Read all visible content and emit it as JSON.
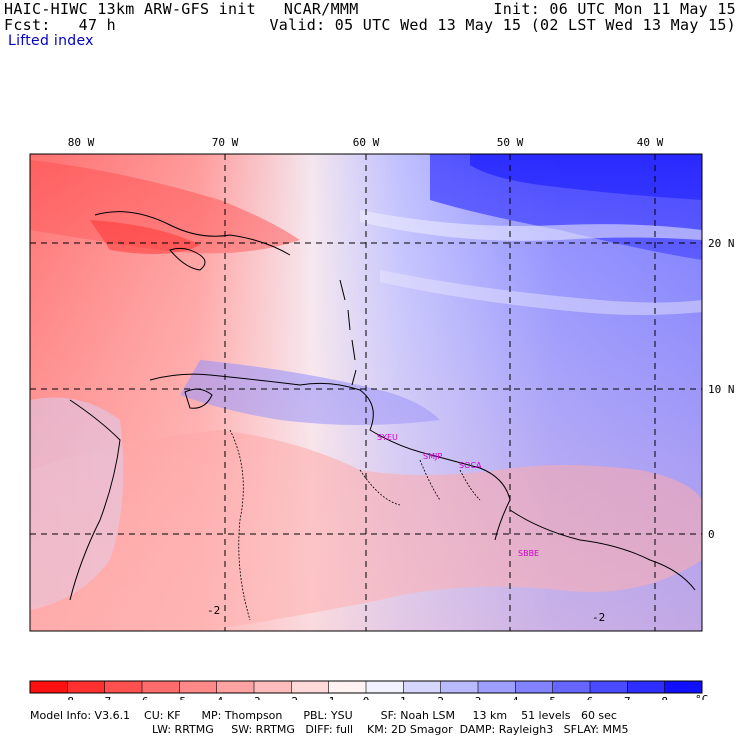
{
  "header": {
    "line1_left": "HAIC-HIWC 13km ARW-GFS init   NCAR/MMM",
    "line2_left": "Fcst:   47 h",
    "line3_left": "Lifted index",
    "line1_right": "Init: 06 UTC Mon 11 May 15",
    "line2_right": "Valid: 05 UTC Wed 13 May 15 (02 LST Wed 13 May 15)"
  },
  "map": {
    "field": "Lifted index",
    "lon_labels": [
      "80 W",
      "70 W",
      "60 W",
      "50 W",
      "40 W"
    ],
    "lat_labels": [
      "20 N",
      "10 N",
      "0"
    ],
    "stations": [
      "SYEU",
      "SMJP",
      "SOCA",
      "SBBE"
    ],
    "contour_labels": [
      "-2",
      "-2"
    ]
  },
  "colorbar": {
    "ticks": [
      "-8",
      "-7",
      "-6",
      "-5",
      "-4",
      "-3",
      "-2",
      "-1",
      "0",
      "1",
      "2",
      "3",
      "4",
      "5",
      "6",
      "7",
      "8"
    ],
    "unit": "°C",
    "colors": [
      "#ff1010",
      "#ff3030",
      "#ff5050",
      "#ff6c6c",
      "#ff8888",
      "#ffa2a2",
      "#ffbcbc",
      "#ffd8d8",
      "#fff2f2",
      "#f2f2ff",
      "#d6d6ff",
      "#babaff",
      "#9e9eff",
      "#8282ff",
      "#6666ff",
      "#4a4aff",
      "#2e2eff",
      "#1010ff"
    ]
  },
  "footer": {
    "line1": "Model Info: V3.6.1    CU: KF      MP: Thompson      PBL: YSU        SF: Noah LSM     13 km    51 levels   60 sec",
    "line2": "LW: RRTMG     SW: RRTMG   DIFF: full    KM: 2D Smagor  DAMP: Rayleigh3   SFLAY: MM5"
  }
}
